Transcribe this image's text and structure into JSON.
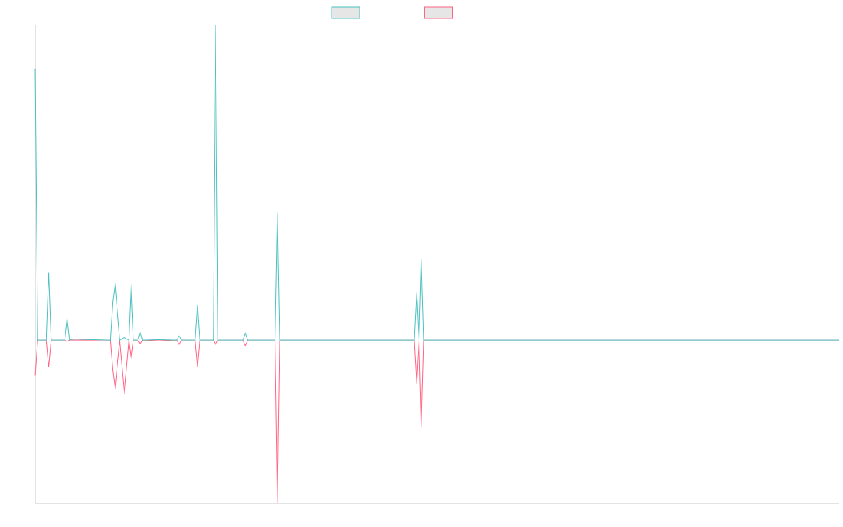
{
  "colors": {
    "series_a": "#4bc0c0",
    "series_b": "#ff6384",
    "legend_fill": "#e6e6e6",
    "axis": "#e3e3e3"
  },
  "chart_data": {
    "type": "line",
    "title": "",
    "xlabel": "",
    "ylabel": "",
    "grid": false,
    "legend_position": "top-center",
    "xlim": [
      0,
      88
    ],
    "ylim": [
      -0.6,
      1.16
    ],
    "series": [
      {
        "x": [
          0,
          0.25,
          1.25,
          1.5,
          1.75,
          3.25,
          3.5,
          3.75,
          4.2,
          8.25,
          8.5,
          8.75,
          9.25,
          9.75,
          10.25,
          10.5,
          10.75,
          11.25,
          11.5,
          11.75,
          13.5,
          15.5,
          15.75,
          16,
          17.5,
          17.75,
          18,
          19.5,
          19.75,
          20,
          22.75,
          23,
          23.25,
          26.25,
          26.5,
          26.75,
          41.5,
          41.75,
          42,
          42.25,
          42.5,
          42.75,
          88
        ],
        "y": [
          1.0,
          0,
          0,
          0.25,
          0,
          0,
          0.08,
          0,
          0.004,
          0,
          0.14,
          0.21,
          0,
          0.01,
          0,
          0.21,
          0,
          0,
          0.03,
          0,
          0.002,
          0,
          0.015,
          0,
          0,
          0.13,
          0,
          0,
          1.16,
          0,
          0,
          0.025,
          0,
          0,
          0.47,
          0,
          0,
          0.175,
          0,
          0.3,
          0,
          0,
          0
        ]
      },
      {
        "x": [
          0,
          0.25,
          1.25,
          1.5,
          1.75,
          3.25,
          3.5,
          3.75,
          4.2,
          8.25,
          8.5,
          8.75,
          9.25,
          9.75,
          10.25,
          10.5,
          10.75,
          11.25,
          11.5,
          11.75,
          13.5,
          15.5,
          15.75,
          16,
          17.5,
          17.75,
          18,
          19.5,
          19.75,
          20,
          22.75,
          23,
          23.25,
          26.25,
          26.5,
          26.75,
          41.5,
          41.75,
          42,
          42.25,
          42.5,
          42.75,
          88
        ],
        "y": [
          -0.13,
          0,
          0,
          -0.1,
          0,
          0,
          -0.005,
          0,
          0,
          0,
          -0.11,
          -0.18,
          0,
          -0.2,
          0,
          -0.07,
          0,
          0,
          -0.015,
          0,
          -0.002,
          0,
          -0.015,
          0,
          0,
          -0.1,
          0,
          0,
          -0.015,
          0,
          0,
          -0.02,
          0,
          0,
          -0.6,
          0,
          0,
          -0.16,
          0,
          -0.32,
          0,
          0,
          0
        ]
      }
    ]
  }
}
